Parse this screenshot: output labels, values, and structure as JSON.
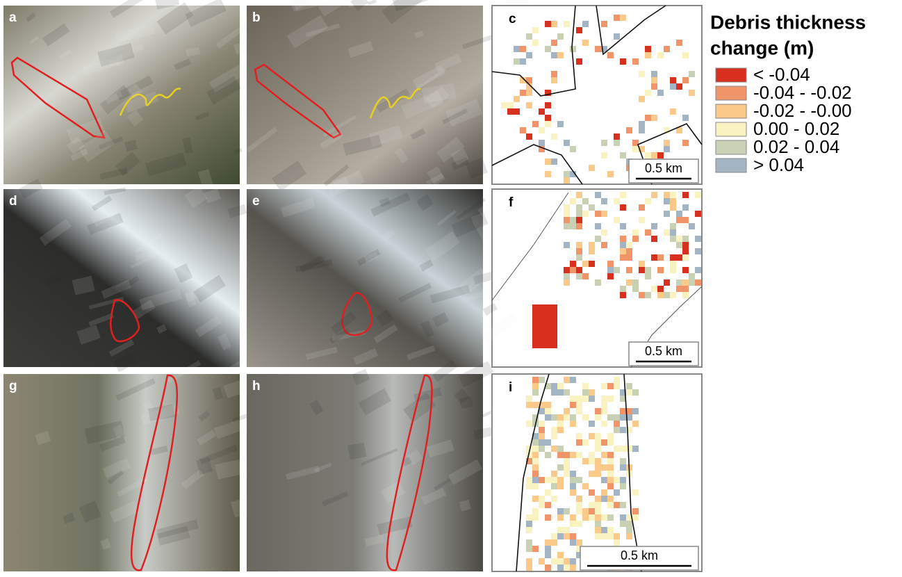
{
  "panels": [
    {
      "label": "a"
    },
    {
      "label": "b"
    },
    {
      "label": "c",
      "scale_bar": "0.5 km"
    },
    {
      "label": "d"
    },
    {
      "label": "e"
    },
    {
      "label": "f",
      "scale_bar": "0.5 km"
    },
    {
      "label": "g"
    },
    {
      "label": "h"
    },
    {
      "label": "i",
      "scale_bar": "0.5 km"
    }
  ],
  "legend": {
    "title_lines": [
      "Debris thickness",
      "change (m)"
    ],
    "items": [
      {
        "label": "< -0.04",
        "color": "#d7301f"
      },
      {
        "label": "-0.04 - -0.02",
        "color": "#f0956a"
      },
      {
        "label": "-0.02 - -0.00",
        "color": "#fbc98a"
      },
      {
        "label": "0.00 - 0.02",
        "color": "#f8f3c0"
      },
      {
        "label": "0.02 - 0.04",
        "color": "#c8d1b4"
      },
      {
        "label": "> 0.04",
        "color": "#a3b4c4"
      }
    ]
  }
}
